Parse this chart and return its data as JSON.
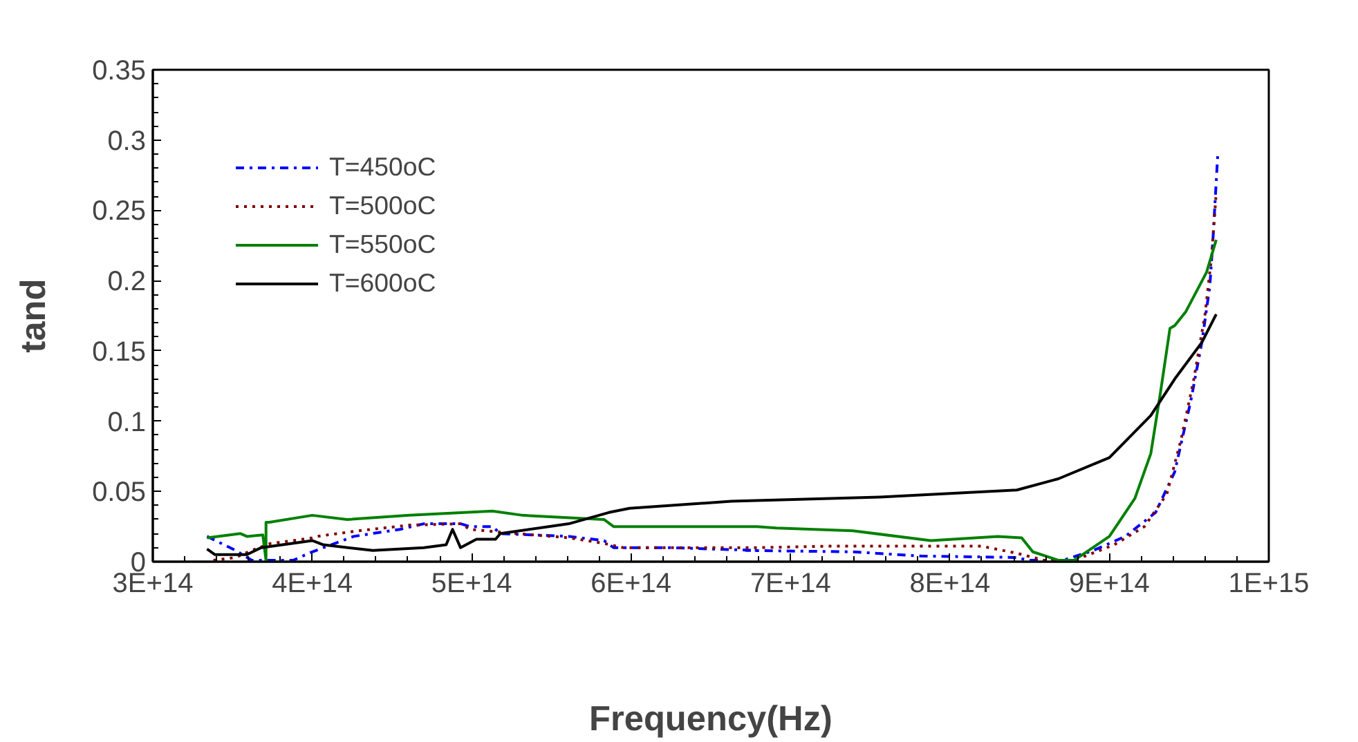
{
  "chart_data": {
    "type": "line",
    "xlabel": "Frequency(Hz)",
    "ylabel": "tand",
    "xlim": [
      300000000000000.0,
      1000000000000000.0
    ],
    "ylim": [
      0,
      0.35
    ],
    "xticks": [
      {
        "value": 300000000000000.0,
        "label": "3E+14"
      },
      {
        "value": 400000000000000.0,
        "label": "4E+14"
      },
      {
        "value": 500000000000000.0,
        "label": "5E+14"
      },
      {
        "value": 600000000000000.0,
        "label": "6E+14"
      },
      {
        "value": 700000000000000.0,
        "label": "7E+14"
      },
      {
        "value": 800000000000000.0,
        "label": "8E+14"
      },
      {
        "value": 900000000000000.0,
        "label": "9E+14"
      },
      {
        "value": 1000000000000000.0,
        "label": "1E+15"
      }
    ],
    "yticks": [
      0,
      0.05,
      0.1,
      0.15,
      0.2,
      0.25,
      0.3,
      0.35
    ],
    "grid": false,
    "legend": "top left",
    "series": [
      {
        "name": "T=450oC",
        "color": "#0000ff",
        "line_style": "dashdot",
        "x": [
          334000000000000.0,
          352000000000000.0,
          362000000000000.0,
          388000000000000.0,
          400000000000000.0,
          426000000000000.0,
          455000000000000.0,
          470000000000000.0,
          493000000000000.0,
          499000000000000.0,
          513000000000000.0,
          518000000000000.0,
          561000000000000.0,
          583000000000000.0,
          589000000000000.0,
          624000000000000.0,
          679000000000000.0,
          672000000000000.0,
          739000000000000.0,
          782000000000000.0,
          842000000000000.0,
          849000000000000.0,
          871000000000000.0,
          890000000000000.0,
          910000000000000.0,
          929000000000000.0,
          941000000000000.0,
          951000000000000.0,
          958000000000000.0,
          963000000000000.0,
          965000000000000.0,
          968000000000000.0
        ],
        "values": [
          0.018,
          0.008,
          0.001,
          0.001,
          0.007,
          0.018,
          0.023,
          0.027,
          0.027,
          0.025,
          0.025,
          0.02,
          0.018,
          0.015,
          0.01,
          0.01,
          0.008,
          0.008,
          0.007,
          0.004,
          0.003,
          0.001,
          0.001,
          0.008,
          0.018,
          0.035,
          0.064,
          0.114,
          0.156,
          0.196,
          0.23,
          0.29
        ]
      },
      {
        "name": "T=500oC",
        "color": "#800000",
        "line_style": "dotted",
        "x": [
          338000000000000.0,
          352000000000000.0,
          362000000000000.0,
          374000000000000.0,
          388000000000000.0,
          400000000000000.0,
          403000000000000.0,
          429000000000000.0,
          461000000000000.0,
          493000000000000.0,
          499000000000000.0,
          518000000000000.0,
          561000000000000.0,
          583000000000000.0,
          595000000000000.0,
          679000000000000.0,
          724000000000000.0,
          820000000000000.0,
          842000000000000.0,
          859000000000000.0,
          878000000000000.0,
          903000000000000.0,
          922000000000000.0,
          936000000000000.0,
          945000000000000.0,
          953000000000000.0,
          960000000000000.0,
          964000000000000.0,
          967000000000000.0
        ],
        "values": [
          0.001,
          0.003,
          0.008,
          0.013,
          0.015,
          0.017,
          0.018,
          0.022,
          0.026,
          0.027,
          0.023,
          0.021,
          0.017,
          0.013,
          0.01,
          0.01,
          0.011,
          0.011,
          0.006,
          0.001,
          0.001,
          0.012,
          0.025,
          0.048,
          0.087,
          0.13,
          0.176,
          0.216,
          0.262
        ]
      },
      {
        "name": "T=550oC",
        "color": "#008000",
        "line_style": "solid",
        "x": [
          334000000000000.0,
          355000000000000.0,
          359000000000000.0,
          369000000000000.0,
          371000000000000.0,
          371000000000000.0,
          373000000000000.0,
          400000000000000.0,
          422000000000000.0,
          461000000000000.0,
          513000000000000.0,
          532000000000000.0,
          583000000000000.0,
          589000000000000.0,
          679000000000000.0,
          691000000000000.0,
          739000000000000.0,
          788000000000000.0,
          830000000000000.0,
          845000000000000.0,
          852000000000000.0,
          868000000000000.0,
          878000000000000.0,
          900000000000000.0,
          916000000000000.0,
          926000000000000.0,
          932000000000000.0,
          938000000000000.0,
          941000000000000.0,
          948000000000000.0,
          961000000000000.0,
          967000000000000.0
        ],
        "values": [
          0.017,
          0.02,
          0.018,
          0.019,
          0.001,
          0.028,
          0.028,
          0.033,
          0.03,
          0.033,
          0.036,
          0.033,
          0.03,
          0.025,
          0.025,
          0.024,
          0.022,
          0.015,
          0.018,
          0.017,
          0.007,
          0.001,
          0.001,
          0.018,
          0.045,
          0.077,
          0.12,
          0.166,
          0.168,
          0.178,
          0.206,
          0.229
        ]
      },
      {
        "name": "T=600oC",
        "color": "#000000",
        "line_style": "solid",
        "x": [
          334000000000000.0,
          339000000000000.0,
          359000000000000.0,
          368000000000000.0,
          400000000000000.0,
          407000000000000.0,
          438000000000000.0,
          470000000000000.0,
          484000000000000.0,
          488000000000000.0,
          493000000000000.0,
          503000000000000.0,
          515000000000000.0,
          518000000000000.0,
          561000000000000.0,
          586000000000000.0,
          599000000000000.0,
          663000000000000.0,
          756000000000000.0,
          842000000000000.0,
          868000000000000.0,
          900000000000000.0,
          926000000000000.0,
          941000000000000.0,
          958000000000000.0,
          967000000000000.0
        ],
        "values": [
          0.009,
          0.005,
          0.005,
          0.01,
          0.015,
          0.012,
          0.008,
          0.01,
          0.012,
          0.023,
          0.01,
          0.016,
          0.016,
          0.02,
          0.027,
          0.035,
          0.038,
          0.043,
          0.046,
          0.051,
          0.059,
          0.074,
          0.104,
          0.13,
          0.156,
          0.176
        ]
      }
    ]
  }
}
